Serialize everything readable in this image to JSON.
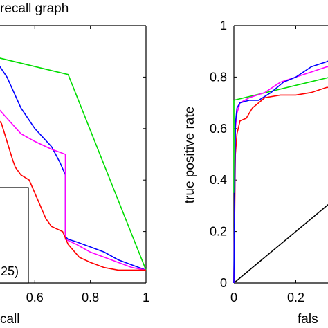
{
  "chart_data": [
    {
      "type": "line",
      "title": "recall graph",
      "xlabel": "call",
      "ylabel": "",
      "xlim": [
        0.45,
        1
      ],
      "ylim": [
        0,
        1
      ],
      "x_ticks": [
        0.6,
        0.8,
        1
      ],
      "x_tick_labels": [
        "0.6",
        "0.8",
        "1"
      ],
      "y_ticks": [
        0.2,
        0.4,
        0.6,
        0.8,
        1
      ],
      "legend_fragment": "25)",
      "series": [
        {
          "color": "#00dd00",
          "values": [
            [
              0.45,
              0.88
            ],
            [
              0.72,
              0.81
            ],
            [
              1.0,
              0.05
            ]
          ]
        },
        {
          "color": "#0000ff",
          "values": [
            [
              0.45,
              0.88
            ],
            [
              0.5,
              0.8
            ],
            [
              0.55,
              0.68
            ],
            [
              0.6,
              0.6
            ],
            [
              0.66,
              0.53
            ],
            [
              0.69,
              0.47
            ],
            [
              0.71,
              0.42
            ],
            [
              0.71,
              0.18
            ],
            [
              0.72,
              0.17
            ],
            [
              0.75,
              0.16
            ],
            [
              0.8,
              0.14
            ],
            [
              0.85,
              0.12
            ],
            [
              0.9,
              0.09
            ],
            [
              0.95,
              0.07
            ],
            [
              1.0,
              0.05
            ]
          ]
        },
        {
          "color": "#ff00ff",
          "values": [
            [
              0.45,
              0.7
            ],
            [
              0.5,
              0.64
            ],
            [
              0.55,
              0.58
            ],
            [
              0.6,
              0.55
            ],
            [
              0.66,
              0.52
            ],
            [
              0.71,
              0.5
            ],
            [
              0.71,
              0.17
            ],
            [
              0.75,
              0.15
            ],
            [
              0.8,
              0.12
            ],
            [
              0.85,
              0.1
            ],
            [
              0.9,
              0.08
            ],
            [
              0.95,
              0.06
            ],
            [
              1.0,
              0.05
            ]
          ]
        },
        {
          "color": "#ff0000",
          "values": [
            [
              0.45,
              0.66
            ],
            [
              0.48,
              0.62
            ],
            [
              0.5,
              0.55
            ],
            [
              0.52,
              0.48
            ],
            [
              0.53,
              0.45
            ],
            [
              0.55,
              0.42
            ],
            [
              0.58,
              0.4
            ],
            [
              0.6,
              0.35
            ],
            [
              0.62,
              0.3
            ],
            [
              0.64,
              0.25
            ],
            [
              0.66,
              0.22
            ],
            [
              0.7,
              0.2
            ],
            [
              0.72,
              0.15
            ],
            [
              0.76,
              0.1
            ],
            [
              0.8,
              0.08
            ],
            [
              0.85,
              0.06
            ],
            [
              0.9,
              0.05
            ],
            [
              0.95,
              0.05
            ],
            [
              1.0,
              0.05
            ]
          ]
        }
      ]
    },
    {
      "type": "line",
      "title": "",
      "xlabel": "fals",
      "ylabel": "true positive rate",
      "xlim": [
        0,
        0.38
      ],
      "ylim": [
        0,
        1
      ],
      "x_ticks": [
        0,
        0.2
      ],
      "x_tick_labels": [
        "0",
        "0.2"
      ],
      "y_ticks": [
        0,
        0.2,
        0.4,
        0.6,
        0.8,
        1
      ],
      "y_tick_labels": [
        "0",
        "0.2",
        "0.4",
        "0.6",
        "0.8",
        "1"
      ],
      "series": [
        {
          "color": "#000000",
          "values": [
            [
              0,
              0
            ],
            [
              0.38,
              0.38
            ]
          ]
        },
        {
          "color": "#00dd00",
          "values": [
            [
              0,
              0.35
            ],
            [
              0,
              0.71
            ],
            [
              0.38,
              0.82
            ]
          ]
        },
        {
          "color": "#ff0000",
          "values": [
            [
              0,
              0
            ],
            [
              0.005,
              0.5
            ],
            [
              0.01,
              0.58
            ],
            [
              0.02,
              0.63
            ],
            [
              0.04,
              0.64
            ],
            [
              0.06,
              0.68
            ],
            [
              0.08,
              0.7
            ],
            [
              0.1,
              0.72
            ],
            [
              0.15,
              0.73
            ],
            [
              0.2,
              0.73
            ],
            [
              0.25,
              0.74
            ],
            [
              0.3,
              0.76
            ],
            [
              0.35,
              0.76
            ],
            [
              0.38,
              0.76
            ]
          ]
        },
        {
          "color": "#ff00ff",
          "values": [
            [
              0,
              0
            ],
            [
              0.005,
              0.6
            ],
            [
              0.01,
              0.66
            ],
            [
              0.02,
              0.7
            ],
            [
              0.05,
              0.72
            ],
            [
              0.1,
              0.74
            ],
            [
              0.15,
              0.78
            ],
            [
              0.2,
              0.8
            ],
            [
              0.25,
              0.82
            ],
            [
              0.3,
              0.84
            ],
            [
              0.35,
              0.84
            ],
            [
              0.38,
              0.85
            ]
          ]
        },
        {
          "color": "#0000ff",
          "values": [
            [
              0,
              0
            ],
            [
              0.005,
              0.62
            ],
            [
              0.01,
              0.68
            ],
            [
              0.02,
              0.7
            ],
            [
              0.05,
              0.71
            ],
            [
              0.08,
              0.71
            ],
            [
              0.12,
              0.74
            ],
            [
              0.16,
              0.78
            ],
            [
              0.2,
              0.8
            ],
            [
              0.25,
              0.84
            ],
            [
              0.3,
              0.86
            ],
            [
              0.34,
              0.88
            ],
            [
              0.38,
              0.88
            ]
          ]
        }
      ]
    }
  ]
}
